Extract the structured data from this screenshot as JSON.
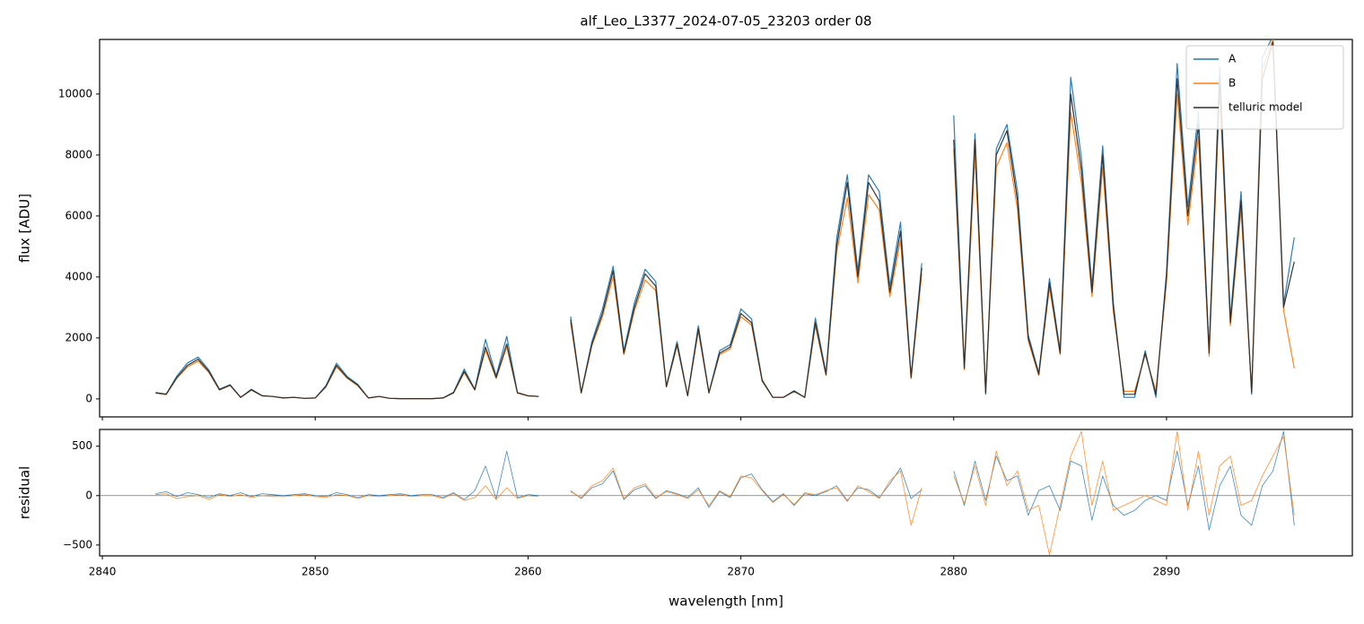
{
  "chart_data": [
    {
      "type": "line",
      "title": "alf_Leo_L3377_2024-07-05_23203  order 08",
      "ylabel": "flux [ADU]",
      "legend": "upper right",
      "xlim": [
        2839.87,
        2898.73
      ],
      "ylim": [
        -590,
        11790
      ],
      "yticks": [
        0,
        2000,
        4000,
        6000,
        8000,
        10000
      ],
      "x": [
        2842.5,
        2843,
        2843.5,
        2844,
        2844.5,
        2845,
        2845.5,
        2846,
        2846.5,
        2847,
        2847.5,
        2848,
        2848.5,
        2849,
        2849.5,
        2850,
        2850.5,
        2851,
        2851.5,
        2852,
        2852.5,
        2853,
        2853.5,
        2854,
        2854.5,
        2855,
        2855.5,
        2856,
        2856.5,
        2857,
        2857.5,
        2858,
        2858.5,
        2859,
        2859.5,
        2860,
        2860.5,
        2861,
        2861.5,
        2862,
        2862.5,
        2863,
        2863.5,
        2864,
        2864.5,
        2865,
        2865.5,
        2866,
        2866.5,
        2867,
        2867.5,
        2868,
        2868.5,
        2869,
        2869.5,
        2870,
        2870.5,
        2871,
        2871.5,
        2872,
        2872.5,
        2873,
        2873.5,
        2874,
        2874.5,
        2875,
        2875.5,
        2876,
        2876.5,
        2877,
        2877.5,
        2878,
        2878.5,
        2879,
        2879.5,
        2880,
        2880.5,
        2881,
        2881.5,
        2882,
        2882.5,
        2883,
        2883.5,
        2884,
        2884.5,
        2885,
        2885.5,
        2886,
        2886.5,
        2887,
        2887.5,
        2888,
        2888.5,
        2889,
        2889.5,
        2890,
        2890.5,
        2891,
        2891.5,
        2892,
        2892.5,
        2893,
        2893.5,
        2894,
        2894.5,
        2895,
        2895.5,
        2896
      ],
      "series": [
        {
          "name": "A",
          "color": "#1f77b4",
          "values": [
            210,
            160,
            750,
            1180,
            1370,
            950,
            320,
            470,
            50,
            320,
            110,
            80,
            30,
            50,
            20,
            30,
            430,
            1170,
            740,
            480,
            30,
            80,
            20,
            10,
            10,
            10,
            10,
            30,
            220,
            980,
            320,
            1950,
            760,
            2050,
            210,
            100,
            80,
            null,
            null,
            2700,
            210,
            1880,
            2950,
            4350,
            1580,
            3150,
            4250,
            3850,
            420,
            1880,
            110,
            2400,
            210,
            1580,
            1780,
            2950,
            2620,
            630,
            50,
            50,
            270,
            50,
            2650,
            850,
            5250,
            7350,
            4200,
            7350,
            6800,
            3700,
            5800,
            740,
            4450,
            null,
            null,
            9300,
            1050,
            8700,
            150,
            8200,
            9000,
            6800,
            2100,
            850,
            3950,
            1580,
            10550,
            7900,
            3700,
            8300,
            3150,
            50,
            50,
            1580,
            50,
            4150,
            11000,
            6300,
            9400,
            1600,
            10900,
            2650,
            6800,
            150,
            11200,
            11900,
            3100,
            5300
          ]
        },
        {
          "name": "B",
          "color": "#ff7f0e",
          "values": [
            190,
            140,
            680,
            1050,
            1240,
            870,
            290,
            440,
            50,
            290,
            100,
            80,
            30,
            50,
            20,
            30,
            390,
            1050,
            680,
            430,
            30,
            80,
            20,
            10,
            10,
            10,
            10,
            30,
            190,
            860,
            290,
            1600,
            670,
            1700,
            190,
            100,
            80,
            null,
            null,
            2500,
            190,
            1740,
            2700,
            4000,
            1450,
            2900,
            3900,
            3550,
            390,
            1740,
            100,
            2220,
            190,
            1450,
            1640,
            2700,
            2420,
            580,
            50,
            50,
            240,
            50,
            2400,
            770,
            4800,
            6600,
            3800,
            6700,
            6200,
            3350,
            5200,
            670,
            4100,
            null,
            null,
            8200,
            950,
            8000,
            250,
            7600,
            8400,
            6200,
            1900,
            770,
            3650,
            1450,
            9400,
            7100,
            3350,
            7600,
            2850,
            250,
            250,
            1450,
            250,
            3800,
            10000,
            5700,
            8600,
            1400,
            10100,
            2400,
            6200,
            250,
            10800,
            11800,
            2900,
            1000
          ]
        },
        {
          "name": "telluric model",
          "color": "#2b2b2b",
          "values": [
            200,
            150,
            700,
            1100,
            1300,
            900,
            300,
            450,
            50,
            300,
            100,
            80,
            30,
            50,
            20,
            30,
            400,
            1100,
            700,
            450,
            30,
            80,
            20,
            10,
            10,
            10,
            10,
            30,
            200,
            900,
            300,
            1700,
            700,
            1800,
            200,
            100,
            80,
            null,
            null,
            2600,
            200,
            1800,
            2800,
            4200,
            1500,
            3000,
            4100,
            3700,
            400,
            1800,
            100,
            2300,
            200,
            1500,
            1700,
            2800,
            2500,
            600,
            50,
            50,
            250,
            50,
            2500,
            800,
            5000,
            7100,
            4000,
            7100,
            6500,
            3500,
            5500,
            700,
            4300,
            null,
            null,
            8500,
            1000,
            8500,
            200,
            8000,
            8800,
            6500,
            2000,
            800,
            3800,
            1500,
            10000,
            7500,
            3500,
            8000,
            3000,
            150,
            150,
            1500,
            150,
            4000,
            10500,
            6000,
            9000,
            1500,
            10500,
            2500,
            6500,
            200,
            10500,
            11700,
            3000,
            4500
          ]
        }
      ]
    },
    {
      "type": "line",
      "ylabel": "residual",
      "xlabel": "wavelength [nm]",
      "hline": 0,
      "xlim": [
        2839.87,
        2898.73
      ],
      "ylim": [
        -610,
        670
      ],
      "xticks": [
        2840,
        2850,
        2860,
        2870,
        2880,
        2890
      ],
      "yticks": [
        {
          "value": -500,
          "label": "−500"
        },
        0,
        500
      ],
      "x": [
        2842.5,
        2843,
        2843.5,
        2844,
        2844.5,
        2845,
        2845.5,
        2846,
        2846.5,
        2847,
        2847.5,
        2848,
        2848.5,
        2849,
        2849.5,
        2850,
        2850.5,
        2851,
        2851.5,
        2852,
        2852.5,
        2853,
        2853.5,
        2854,
        2854.5,
        2855,
        2855.5,
        2856,
        2856.5,
        2857,
        2857.5,
        2858,
        2858.5,
        2859,
        2859.5,
        2860,
        2860.5,
        2861,
        2861.5,
        2862,
        2862.5,
        2863,
        2863.5,
        2864,
        2864.5,
        2865,
        2865.5,
        2866,
        2866.5,
        2867,
        2867.5,
        2868,
        2868.5,
        2869,
        2869.5,
        2870,
        2870.5,
        2871,
        2871.5,
        2872,
        2872.5,
        2873,
        2873.5,
        2874,
        2874.5,
        2875,
        2875.5,
        2876,
        2876.5,
        2877,
        2877.5,
        2878,
        2878.5,
        2879,
        2879.5,
        2880,
        2880.5,
        2881,
        2881.5,
        2882,
        2882.5,
        2883,
        2883.5,
        2884,
        2884.5,
        2885,
        2885.5,
        2886,
        2886.5,
        2887,
        2887.5,
        2888,
        2888.5,
        2889,
        2889.5,
        2890,
        2890.5,
        2891,
        2891.5,
        2892,
        2892.5,
        2893,
        2893.5,
        2894,
        2894.5,
        2895,
        2895.5,
        2896
      ],
      "series": [
        {
          "color": "#1f77b4",
          "values": [
            20,
            40,
            -10,
            30,
            10,
            -20,
            20,
            0,
            30,
            -10,
            20,
            10,
            0,
            10,
            20,
            0,
            -10,
            30,
            10,
            -20,
            10,
            0,
            10,
            20,
            0,
            10,
            10,
            -20,
            30,
            -40,
            50,
            300,
            -30,
            450,
            -20,
            10,
            0,
            null,
            null,
            50,
            -30,
            80,
            120,
            250,
            -40,
            60,
            100,
            -30,
            50,
            20,
            -20,
            80,
            -120,
            40,
            -20,
            180,
            220,
            60,
            -60,
            20,
            -100,
            20,
            0,
            40,
            100,
            -50,
            80,
            60,
            -20,
            120,
            280,
            -30,
            60,
            null,
            null,
            250,
            -100,
            350,
            -50,
            400,
            150,
            200,
            -200,
            50,
            100,
            -150,
            350,
            300,
            -250,
            200,
            -100,
            -200,
            -150,
            -50,
            0,
            -50,
            450,
            -100,
            300,
            -350,
            100,
            300,
            -200,
            -300,
            100,
            250,
            650,
            -300
          ]
        },
        {
          "color": "#ff7f0e",
          "values": [
            10,
            20,
            -30,
            -10,
            0,
            -40,
            10,
            -10,
            10,
            -20,
            0,
            -10,
            -10,
            0,
            10,
            -10,
            -20,
            10,
            0,
            -30,
            0,
            -10,
            0,
            10,
            -10,
            0,
            0,
            -30,
            20,
            -50,
            -20,
            100,
            -40,
            80,
            -30,
            0,
            -10,
            null,
            null,
            40,
            -20,
            100,
            150,
            280,
            -30,
            80,
            120,
            -20,
            40,
            10,
            -30,
            60,
            -100,
            50,
            -10,
            200,
            180,
            50,
            -70,
            10,
            -90,
            30,
            10,
            50,
            80,
            -60,
            100,
            40,
            -30,
            150,
            250,
            -300,
            80,
            null,
            null,
            200,
            -80,
            300,
            -100,
            450,
            100,
            250,
            -150,
            -100,
            -600,
            -100,
            400,
            650,
            -100,
            350,
            -150,
            -100,
            -50,
            0,
            -50,
            -100,
            650,
            -150,
            450,
            -200,
            300,
            400,
            -100,
            -50,
            200,
            400,
            600,
            -200
          ]
        }
      ]
    }
  ]
}
